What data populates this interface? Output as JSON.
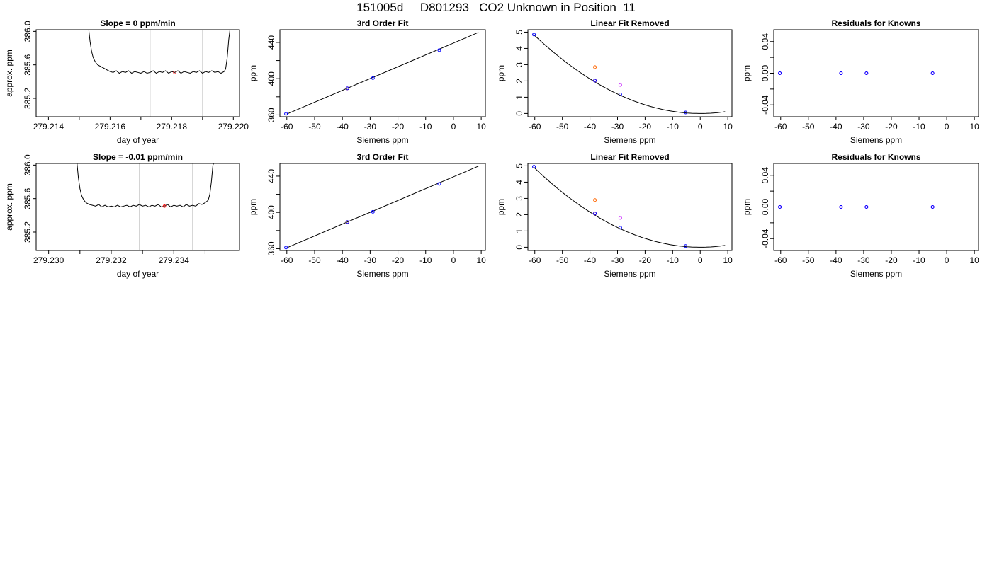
{
  "page_title": "151005d     D801293   CO2 Unknown in Position  11",
  "chart_data": [
    {
      "type": "line",
      "row": 0,
      "col": 0,
      "title": "Slope =  0  ppm/min",
      "xlabel": "day of year",
      "ylabel": "approx. ppm",
      "xlim": [
        279.2136,
        279.2202
      ],
      "ylim": [
        384.98,
        386.02
      ],
      "x_major_ticks": [
        "279.214",
        "279.216",
        "279.218",
        "279.220"
      ],
      "x_minor_ticks": [
        279.215,
        279.217,
        279.219
      ],
      "y_ticks": [
        "385.2",
        "385.6",
        "386.0"
      ],
      "vlines": [
        279.2173,
        279.219
      ],
      "marker": {
        "x": 279.2181,
        "y": 385.51,
        "color": "#ff0000"
      },
      "series": [
        {
          "color": "#000000",
          "x": [
            279.2153,
            279.21535,
            279.2154,
            279.21545,
            279.2155,
            279.21555,
            279.2156,
            279.21565,
            279.2157,
            279.2158,
            279.2159,
            279.216,
            279.2161,
            279.2162,
            279.2163,
            279.2164,
            279.2165,
            279.2166,
            279.2167,
            279.2168,
            279.2169,
            279.217,
            279.2171,
            279.2172,
            279.2173,
            279.2174,
            279.2175,
            279.2176,
            279.2177,
            279.2178,
            279.2179,
            279.218,
            279.2181,
            279.2182,
            279.2183,
            279.2184,
            279.2185,
            279.2186,
            279.2187,
            279.2188,
            279.2189,
            279.219,
            279.2191,
            279.2192,
            279.2193,
            279.2194,
            279.2195,
            279.2196,
            279.2197,
            279.21975,
            279.2198,
            279.21985,
            279.2199
          ],
          "y": [
            386.05,
            385.88,
            385.76,
            385.69,
            385.65,
            385.62,
            385.6,
            385.59,
            385.58,
            385.56,
            385.54,
            385.52,
            385.51,
            385.53,
            385.5,
            385.52,
            385.51,
            385.53,
            385.5,
            385.52,
            385.51,
            385.5,
            385.52,
            385.5,
            385.51,
            385.53,
            385.5,
            385.52,
            385.51,
            385.53,
            385.5,
            385.52,
            385.51,
            385.53,
            385.5,
            385.52,
            385.51,
            385.5,
            385.52,
            385.51,
            385.53,
            385.5,
            385.52,
            385.51,
            385.53,
            385.51,
            385.52,
            385.5,
            385.52,
            385.55,
            385.68,
            385.9,
            386.05
          ]
        }
      ]
    },
    {
      "type": "scatter",
      "row": 0,
      "col": 1,
      "title": "3rd Order Fit",
      "xlabel": "Siemens ppm",
      "ylabel": "ppm",
      "xlim": [
        -62.5,
        11.5
      ],
      "ylim": [
        358,
        454
      ],
      "x_ticks": [
        "-60",
        "-50",
        "-40",
        "-30",
        "-20",
        "-10",
        "0",
        "10"
      ],
      "y_ticks": [
        "360",
        "400",
        "440"
      ],
      "y_minor_ticks": [
        380,
        420
      ],
      "fit_line": {
        "x": [
          -60,
          9
        ],
        "y": [
          361,
          451
        ]
      },
      "points": [
        {
          "x": -60.3,
          "y": 361.2,
          "color": "#0000ff"
        },
        {
          "x": -38.2,
          "y": 389.3,
          "color": "#ff0000"
        },
        {
          "x": -38.2,
          "y": 389.3,
          "color": "#0000ff"
        },
        {
          "x": -29,
          "y": 400.6,
          "color": "#0000ff"
        },
        {
          "x": -5.1,
          "y": 431.5,
          "color": "#0000ff"
        }
      ]
    },
    {
      "type": "scatter",
      "row": 0,
      "col": 2,
      "title": "Linear Fit Removed",
      "xlabel": "Siemens ppm",
      "ylabel": "ppm",
      "xlim": [
        -62.5,
        11.5
      ],
      "ylim": [
        -0.2,
        5.15
      ],
      "x_ticks": [
        "-60",
        "-50",
        "-40",
        "-30",
        "-20",
        "-10",
        "0",
        "10"
      ],
      "y_ticks": [
        "0",
        "1",
        "2",
        "3",
        "4",
        "5"
      ],
      "curve": {
        "x0": 0,
        "k": 0.00133,
        "xmin": -60.5,
        "xmax": 9
      },
      "points": [
        {
          "x": -60.3,
          "y": 4.85,
          "color": "#0000ff"
        },
        {
          "x": -38.2,
          "y": 2.02,
          "color": "#ff0000"
        },
        {
          "x": -38.2,
          "y": 2.02,
          "color": "#0000ff"
        },
        {
          "x": -38.2,
          "y": 2.85,
          "color": "#ff6600"
        },
        {
          "x": -29,
          "y": 1.75,
          "color": "#cc33ff"
        },
        {
          "x": -29,
          "y": 1.17,
          "color": "#0000ff"
        },
        {
          "x": -5.3,
          "y": 0.06,
          "color": "#0000ff"
        }
      ]
    },
    {
      "type": "scatter",
      "row": 0,
      "col": 3,
      "title": "Residuals for Knowns",
      "xlabel": "Siemens ppm",
      "ylabel": "ppm",
      "xlim": [
        -62.5,
        11.5
      ],
      "ylim": [
        -0.055,
        0.055
      ],
      "x_ticks": [
        "-60",
        "-50",
        "-40",
        "-30",
        "-20",
        "-10",
        "0",
        "10"
      ],
      "y_ticks": [
        "-0.04",
        "0.00",
        "0.04"
      ],
      "y_minor_ticks": [
        -0.02,
        0.02
      ],
      "points": [
        {
          "x": -60.3,
          "y": 0,
          "color": "#cc33ff"
        },
        {
          "x": -60.3,
          "y": 0,
          "color": "#0000ff"
        },
        {
          "x": -38.2,
          "y": 0,
          "color": "#cc33ff"
        },
        {
          "x": -38.2,
          "y": 0,
          "color": "#0000ff"
        },
        {
          "x": -29,
          "y": 0,
          "color": "#cc33ff"
        },
        {
          "x": -29,
          "y": 0,
          "color": "#0000ff"
        },
        {
          "x": -5.1,
          "y": 0,
          "color": "#cc33ff"
        },
        {
          "x": -5.1,
          "y": 0,
          "color": "#0000ff"
        }
      ]
    },
    {
      "type": "line",
      "row": 1,
      "col": 0,
      "title": "Slope =  -0.01  ppm/min",
      "xlabel": "day of year",
      "ylabel": "approx. ppm",
      "xlim": [
        279.2296,
        279.2361
      ],
      "ylim": [
        384.98,
        386.02
      ],
      "x_major_ticks": [
        "279.230",
        "279.232",
        "279.234"
      ],
      "x_minor_ticks": [
        279.231,
        279.233,
        279.235
      ],
      "y_ticks": [
        "385.2",
        "385.6",
        "386.0"
      ],
      "vlines": [
        279.2329,
        279.2346
      ],
      "marker": {
        "x": 279.2337,
        "y": 385.51,
        "color": "#ff0000"
      },
      "series": [
        {
          "color": "#000000",
          "x": [
            279.2309,
            279.23095,
            279.231,
            279.23105,
            279.2311,
            279.23115,
            279.2312,
            279.23125,
            279.2313,
            279.2314,
            279.2315,
            279.2316,
            279.2317,
            279.2318,
            279.2319,
            279.232,
            279.2321,
            279.2322,
            279.2323,
            279.2324,
            279.2325,
            279.2326,
            279.2327,
            279.2328,
            279.2329,
            279.233,
            279.2331,
            279.2332,
            279.2333,
            279.2334,
            279.2335,
            279.2336,
            279.2337,
            279.2338,
            279.2339,
            279.234,
            279.2341,
            279.2342,
            279.2343,
            279.2344,
            279.2345,
            279.2346,
            279.2347,
            279.2348,
            279.2349,
            279.235,
            279.2351,
            279.23515,
            279.2352,
            279.23525,
            279.2353
          ],
          "y": [
            386.05,
            385.85,
            385.72,
            385.64,
            385.6,
            385.57,
            385.55,
            385.54,
            385.53,
            385.52,
            385.51,
            385.53,
            385.5,
            385.52,
            385.5,
            385.51,
            385.5,
            385.52,
            385.5,
            385.51,
            385.52,
            385.5,
            385.52,
            385.51,
            385.53,
            385.51,
            385.52,
            385.5,
            385.52,
            385.51,
            385.53,
            385.5,
            385.51,
            385.53,
            385.5,
            385.52,
            385.51,
            385.52,
            385.5,
            385.53,
            385.51,
            385.52,
            385.51,
            385.54,
            385.53,
            385.55,
            385.58,
            385.65,
            385.8,
            386.0,
            386.05
          ]
        }
      ]
    },
    {
      "type": "scatter",
      "row": 1,
      "col": 1,
      "title": "3rd Order Fit",
      "xlabel": "Siemens ppm",
      "ylabel": "ppm",
      "xlim": [
        -62.5,
        11.5
      ],
      "ylim": [
        358,
        454
      ],
      "x_ticks": [
        "-60",
        "-50",
        "-40",
        "-30",
        "-20",
        "-10",
        "0",
        "10"
      ],
      "y_ticks": [
        "360",
        "400",
        "440"
      ],
      "y_minor_ticks": [
        380,
        420
      ],
      "fit_line": {
        "x": [
          -60,
          9
        ],
        "y": [
          361,
          451
        ]
      },
      "points": [
        {
          "x": -60.3,
          "y": 361.2,
          "color": "#0000ff"
        },
        {
          "x": -38.2,
          "y": 389.3,
          "color": "#ff0000"
        },
        {
          "x": -38.2,
          "y": 389.3,
          "color": "#0000ff"
        },
        {
          "x": -29,
          "y": 400.6,
          "color": "#0000ff"
        },
        {
          "x": -5.1,
          "y": 431.5,
          "color": "#0000ff"
        }
      ]
    },
    {
      "type": "scatter",
      "row": 1,
      "col": 2,
      "title": "Linear Fit Removed",
      "xlabel": "Siemens ppm",
      "ylabel": "ppm",
      "xlim": [
        -62.5,
        11.5
      ],
      "ylim": [
        -0.2,
        5.15
      ],
      "x_ticks": [
        "-60",
        "-50",
        "-40",
        "-30",
        "-20",
        "-10",
        "0",
        "10"
      ],
      "y_ticks": [
        "0",
        "1",
        "2",
        "3",
        "4",
        "5"
      ],
      "curve": {
        "x0": 0,
        "k": 0.00135,
        "xmin": -60.5,
        "xmax": 9
      },
      "points": [
        {
          "x": -60.3,
          "y": 4.95,
          "color": "#0000ff"
        },
        {
          "x": -38.2,
          "y": 2.07,
          "color": "#ff0000"
        },
        {
          "x": -38.2,
          "y": 2.07,
          "color": "#0000ff"
        },
        {
          "x": -38.2,
          "y": 2.9,
          "color": "#ff6600"
        },
        {
          "x": -29,
          "y": 1.8,
          "color": "#cc33ff"
        },
        {
          "x": -29,
          "y": 1.2,
          "color": "#0000ff"
        },
        {
          "x": -5.3,
          "y": 0.07,
          "color": "#0000ff"
        }
      ]
    },
    {
      "type": "scatter",
      "row": 1,
      "col": 3,
      "title": "Residuals for Knowns",
      "xlabel": "Siemens ppm",
      "ylabel": "ppm",
      "xlim": [
        -62.5,
        11.5
      ],
      "ylim": [
        -0.055,
        0.055
      ],
      "x_ticks": [
        "-60",
        "-50",
        "-40",
        "-30",
        "-20",
        "-10",
        "0",
        "10"
      ],
      "y_ticks": [
        "-0.04",
        "0.00",
        "0.04"
      ],
      "y_minor_ticks": [
        -0.02,
        0.02
      ],
      "points": [
        {
          "x": -60.3,
          "y": 0,
          "color": "#cc33ff"
        },
        {
          "x": -60.3,
          "y": 0,
          "color": "#0000ff"
        },
        {
          "x": -38.2,
          "y": 0,
          "color": "#cc33ff"
        },
        {
          "x": -38.2,
          "y": 0,
          "color": "#0000ff"
        },
        {
          "x": -29,
          "y": 0,
          "color": "#cc33ff"
        },
        {
          "x": -29,
          "y": 0,
          "color": "#0000ff"
        },
        {
          "x": -5.1,
          "y": 0,
          "color": "#cc33ff"
        },
        {
          "x": -5.1,
          "y": 0,
          "color": "#0000ff"
        }
      ]
    }
  ]
}
